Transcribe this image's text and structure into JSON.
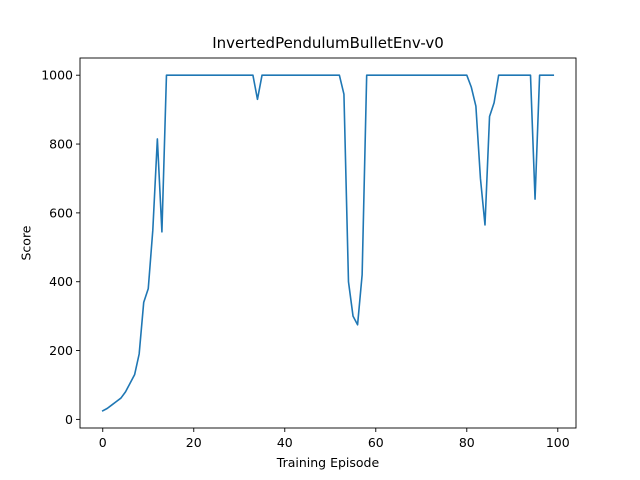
{
  "chart_data": {
    "type": "line",
    "title": "InvertedPendulumBulletEnv-v0",
    "xlabel": "Training Episode",
    "ylabel": "Score",
    "xlim": [
      -5,
      104
    ],
    "ylim": [
      -25,
      1050
    ],
    "xticks": [
      0,
      20,
      40,
      60,
      80,
      100
    ],
    "yticks": [
      0,
      200,
      400,
      600,
      800,
      1000
    ],
    "grid": false,
    "line_color": "#1f77b4",
    "series": [
      {
        "x": [
          0,
          1,
          2,
          3,
          4,
          5,
          6,
          7,
          8,
          9,
          10,
          11,
          12,
          13,
          14,
          15,
          16,
          17,
          18,
          19,
          20,
          21,
          22,
          23,
          24,
          25,
          26,
          27,
          28,
          29,
          30,
          31,
          32,
          33,
          34,
          35,
          36,
          37,
          38,
          39,
          40,
          41,
          42,
          43,
          44,
          45,
          46,
          47,
          48,
          49,
          50,
          51,
          52,
          53,
          54,
          55,
          56,
          57,
          58,
          59,
          60,
          61,
          62,
          63,
          64,
          65,
          66,
          67,
          68,
          69,
          70,
          71,
          72,
          73,
          74,
          75,
          76,
          77,
          78,
          79,
          80,
          81,
          82,
          83,
          84,
          85,
          86,
          87,
          88,
          89,
          90,
          91,
          92,
          93,
          94,
          95,
          96,
          97,
          98,
          99
        ],
        "values": [
          25,
          32,
          42,
          52,
          62,
          80,
          105,
          130,
          190,
          340,
          380,
          550,
          815,
          545,
          1000,
          1000,
          1000,
          1000,
          1000,
          1000,
          1000,
          1000,
          1000,
          1000,
          1000,
          1000,
          1000,
          1000,
          1000,
          1000,
          1000,
          1000,
          1000,
          1000,
          930,
          1000,
          1000,
          1000,
          1000,
          1000,
          1000,
          1000,
          1000,
          1000,
          1000,
          1000,
          1000,
          1000,
          1000,
          1000,
          1000,
          1000,
          1000,
          945,
          400,
          300,
          275,
          420,
          1000,
          1000,
          1000,
          1000,
          1000,
          1000,
          1000,
          1000,
          1000,
          1000,
          1000,
          1000,
          1000,
          1000,
          1000,
          1000,
          1000,
          1000,
          1000,
          1000,
          1000,
          1000,
          1000,
          965,
          910,
          700,
          565,
          880,
          920,
          1000,
          1000,
          1000,
          1000,
          1000,
          1000,
          1000,
          1000,
          640,
          1000,
          1000,
          1000,
          1000
        ]
      }
    ]
  }
}
